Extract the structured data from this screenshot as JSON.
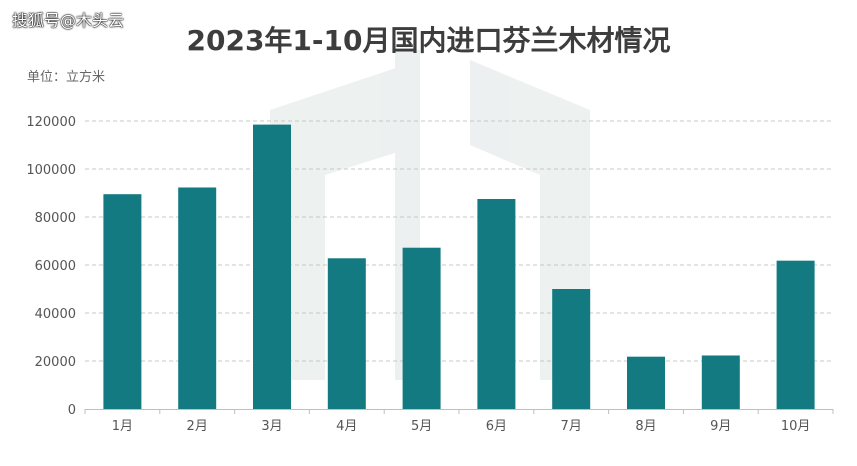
{
  "watermark_text": "搜狐号@木头云",
  "chart_data": {
    "type": "bar",
    "title": "2023年1-10月国内进口芬兰木材情况",
    "unit_label": "单位：立方米",
    "xlabel": "",
    "ylabel": "",
    "categories": [
      "1月",
      "2月",
      "3月",
      "4月",
      "5月",
      "6月",
      "7月",
      "8月",
      "9月",
      "10月"
    ],
    "values": [
      89500,
      92300,
      118500,
      62800,
      67200,
      87500,
      50000,
      21800,
      22300,
      61800
    ],
    "ylim": [
      0,
      120000
    ],
    "yticks": [
      0,
      20000,
      40000,
      60000,
      80000,
      100000,
      120000
    ],
    "ytick_labels": [
      "0",
      "20000",
      "40000",
      "60000",
      "80000",
      "100000",
      "120000"
    ],
    "bar_color": "#137a82",
    "grid": true
  }
}
